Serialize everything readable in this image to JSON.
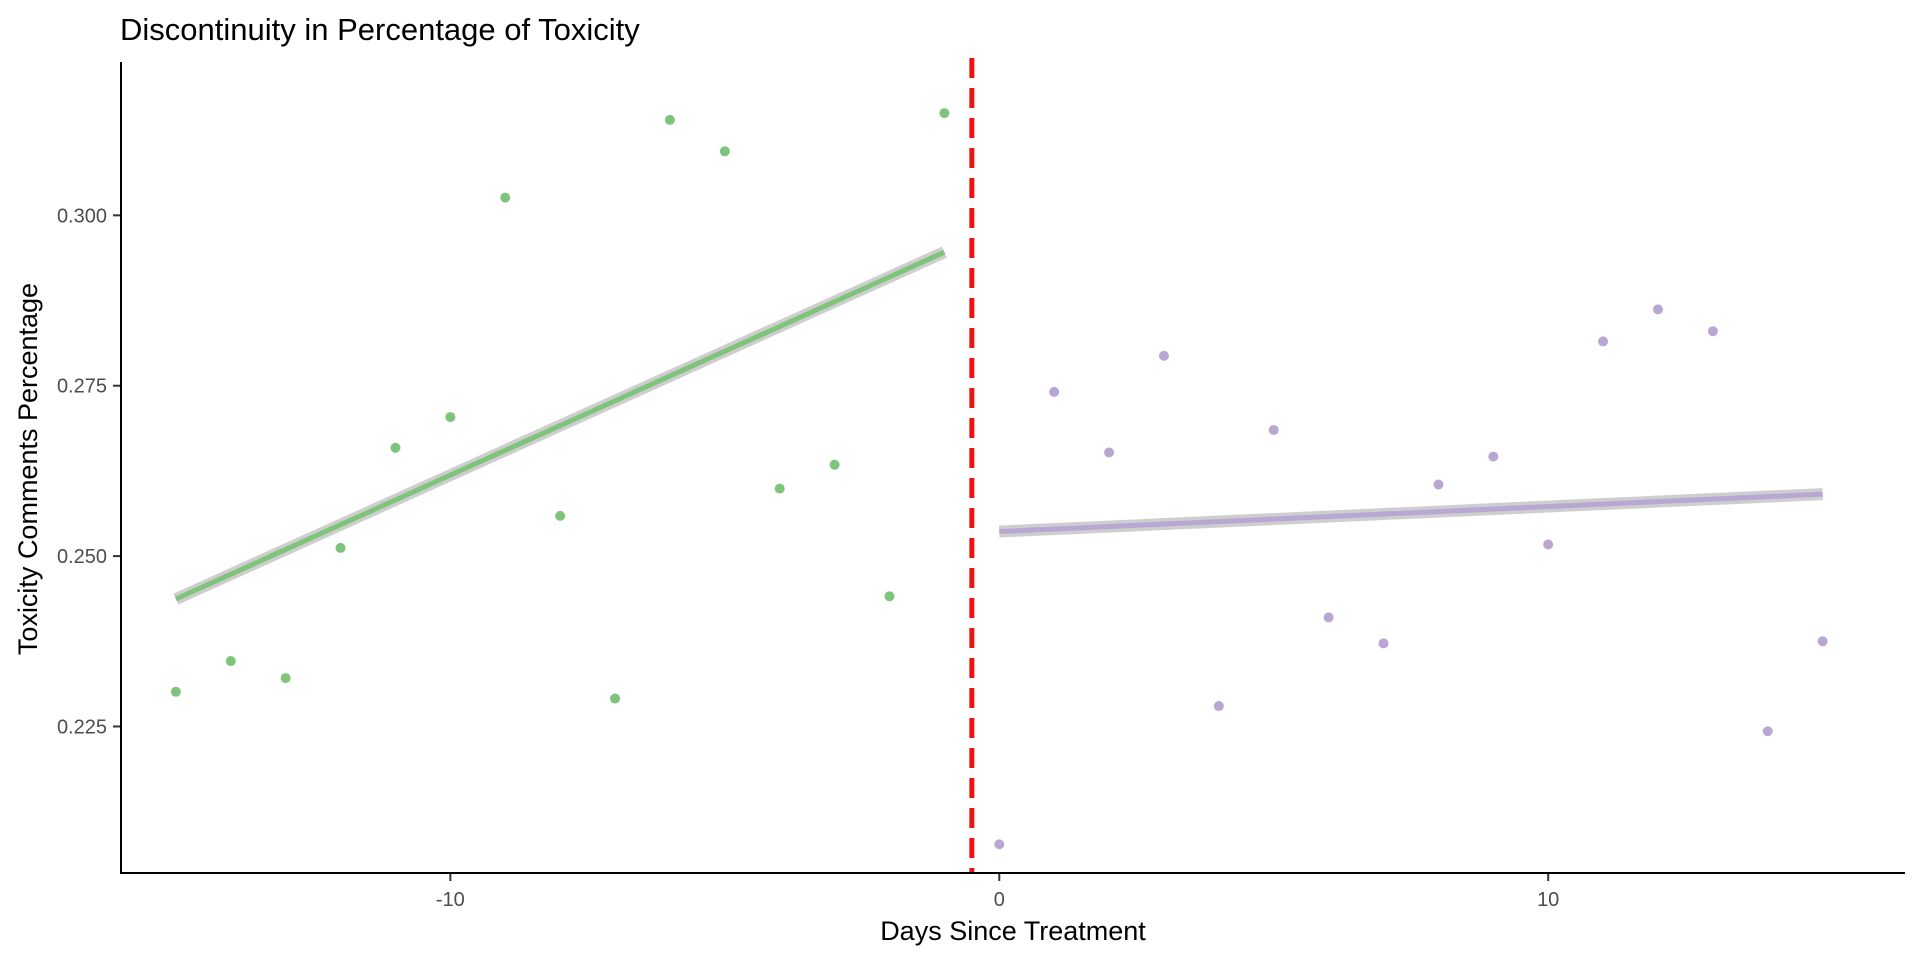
{
  "chart_data": {
    "type": "scatter",
    "title": "Discontinuity in Percentage of Toxicity",
    "xlabel": "Days Since Treatment",
    "ylabel": "Toxicity Comments Percentage",
    "xlim": [
      -16.0,
      16.5
    ],
    "ylim": [
      0.2035,
      0.3225
    ],
    "x_ticks": [
      -10,
      0,
      10
    ],
    "x_tick_labels": [
      "-10",
      "0",
      "10"
    ],
    "y_ticks": [
      0.225,
      0.25,
      0.275,
      0.3
    ],
    "y_tick_labels": [
      "0.225",
      "0.250",
      "0.275",
      "0.300"
    ],
    "grid": false,
    "cutoff": {
      "x": -0.5,
      "color": "#ee1111",
      "style": "dashed"
    },
    "series": [
      {
        "color": "#7fc47b",
        "x": [
          -15,
          -14,
          -13,
          -12,
          -11,
          -10,
          -9,
          -8,
          -7,
          -6,
          -5,
          -4,
          -3,
          -2,
          -1
        ],
        "y": [
          0.2301,
          0.2346,
          0.2321,
          0.2512,
          0.2659,
          0.2704,
          0.3026,
          0.2559,
          0.2291,
          0.314,
          0.3094,
          0.2599,
          0.2634,
          0.2441,
          0.315
        ],
        "fit": {
          "x": [
            -15,
            -1
          ],
          "y": [
            0.2437,
            0.2946
          ]
        }
      },
      {
        "color": "#b9a7d3",
        "x": [
          0,
          1,
          2,
          3,
          4,
          5,
          6,
          7,
          8,
          9,
          10,
          11,
          12,
          13,
          14,
          15
        ],
        "y": [
          0.2077,
          0.2741,
          0.2652,
          0.2794,
          0.228,
          0.2685,
          0.241,
          0.2372,
          0.2605,
          0.2646,
          0.2517,
          0.2815,
          0.2862,
          0.283,
          0.2243,
          0.2375
        ],
        "fit": {
          "x": [
            0,
            15
          ],
          "y": [
            0.2536,
            0.2591
          ]
        }
      }
    ]
  }
}
